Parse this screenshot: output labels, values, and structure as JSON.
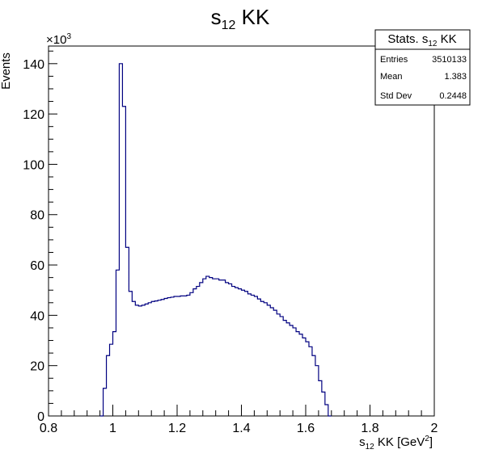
{
  "chart_data": {
    "type": "histogram",
    "title_main": "s",
    "title_sub": "12",
    "title_rest": " KK",
    "xlabel_main": "s",
    "xlabel_sub": "12",
    "xlabel_rest": " KK [GeV",
    "xlabel_sup": "2",
    "xlabel_close": "]",
    "ylabel": "Events",
    "y_multiplier_base": "×10",
    "y_multiplier_exp": "3",
    "xlim": [
      0.8,
      2.0
    ],
    "ylim": [
      0,
      147
    ],
    "x_ticks": [
      0.8,
      1.0,
      1.2,
      1.4,
      1.6,
      1.8,
      2.0
    ],
    "x_tick_labels": [
      "0.8",
      "1",
      "1.2",
      "1.4",
      "1.6",
      "1.8",
      "2"
    ],
    "y_ticks": [
      0,
      20,
      40,
      60,
      80,
      100,
      120,
      140
    ],
    "y_tick_labels": [
      "0",
      "20",
      "40",
      "60",
      "80",
      "100",
      "120",
      "140"
    ],
    "y_units": "thousands of events",
    "line_color": "#000080",
    "bin_width": 0.01,
    "bin_start": 0.96,
    "values": [
      0,
      11,
      24,
      28.5,
      33.5,
      58,
      140,
      123,
      67,
      49.5,
      45.5,
      44,
      43.7,
      44,
      44.5,
      45,
      45.5,
      45.7,
      46,
      46.3,
      46.7,
      47,
      47.2,
      47.5,
      47.5,
      47.7,
      47.7,
      48,
      49,
      50.5,
      51.5,
      53,
      54.5,
      55.5,
      55,
      54.5,
      54.5,
      54,
      54,
      53,
      52.5,
      51.5,
      51,
      50.5,
      50,
      49.5,
      48.5,
      48,
      47.5,
      46.5,
      45.5,
      45,
      44,
      43,
      42,
      40.5,
      39.5,
      38,
      37,
      36,
      35,
      33.5,
      32.5,
      31,
      29.5,
      27.5,
      24,
      20,
      14,
      9.5,
      4.5,
      0
    ],
    "stats": {
      "title_main": "Stats. s",
      "title_sub": "12",
      "title_rest": " KK",
      "rows": [
        {
          "label": "Entries",
          "value": "3510133"
        },
        {
          "label": "Mean",
          "value": "1.383"
        },
        {
          "label": "Std Dev",
          "value": "0.2448"
        }
      ]
    }
  }
}
